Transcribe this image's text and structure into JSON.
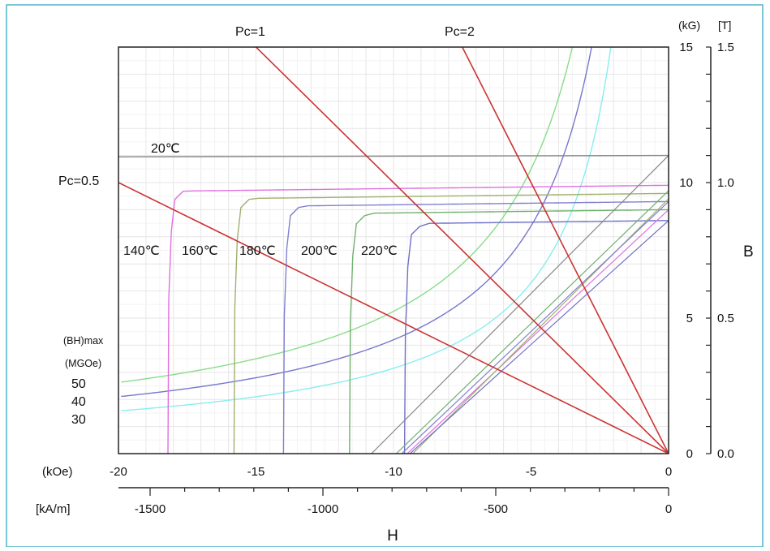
{
  "chart_data": {
    "type": "line",
    "title": "",
    "xlabel": "H",
    "ylabel": "B",
    "x_unit_primary": "(kOe)",
    "x_unit_secondary": "[kA/m]",
    "y_unit_primary": "(kG)",
    "y_unit_secondary": "[T]",
    "xlim": [
      -20,
      0
    ],
    "ylim": [
      0,
      15
    ],
    "grid": true,
    "x_ticks_kOe": [
      "-20",
      "-15",
      "-10",
      "-5",
      "0"
    ],
    "x_ticks_kAm": [
      {
        "label": "-1500",
        "value": -1500
      },
      {
        "label": "-1000",
        "value": -1000
      },
      {
        "label": "-500",
        "value": -500
      },
      {
        "label": "0",
        "value": 0
      }
    ],
    "y_ticks_kG": [
      "0",
      "5",
      "10",
      "15"
    ],
    "y_ticks_T": [
      "0.0",
      "0.5",
      "1.0",
      "1.5"
    ],
    "demag_curves": [
      {
        "name": "20℃",
        "br": 11.0,
        "hcj": -30,
        "color": "#888888"
      },
      {
        "name": "140℃",
        "br": 9.9,
        "hcj": -18.2,
        "color": "#e070e0"
      },
      {
        "name": "160℃",
        "br": 9.6,
        "hcj": -15.8,
        "color": "#a0b070"
      },
      {
        "name": "180℃",
        "br": 9.3,
        "hcj": -14.0,
        "color": "#8080d0"
      },
      {
        "name": "200℃",
        "br": 9.0,
        "hcj": -11.6,
        "color": "#70b070"
      },
      {
        "name": "220℃",
        "br": 8.6,
        "hcj": -9.6,
        "color": "#7070c8"
      }
    ],
    "recoil_lines": [
      {
        "h0": -9.5,
        "b0": 9.0,
        "color": "#e070e0"
      },
      {
        "h0": -9.3,
        "b0": 9.4,
        "color": "#a0b070"
      },
      {
        "h0": -9.7,
        "b0": 9.3,
        "color": "#8080d0"
      },
      {
        "h0": -9.9,
        "b0": 9.7,
        "color": "#70b070"
      },
      {
        "h0": -9.4,
        "b0": 8.6,
        "color": "#7070c8"
      },
      {
        "h0": -10.8,
        "b0": 11.0,
        "color": "#888888"
      }
    ],
    "bhmax_label_line1": "(BH)max",
    "bhmax_label_line2": "(MGOe)",
    "bhmax_curves": [
      {
        "name": "50",
        "value": 50,
        "color": "#88dd88"
      },
      {
        "name": "40",
        "value": 40,
        "color": "#7777cc"
      },
      {
        "name": "30",
        "value": 30,
        "color": "#88eeee"
      }
    ],
    "load_lines": [
      {
        "name": "Pc=0.5",
        "pc": 0.5
      },
      {
        "name": "Pc=1",
        "pc": 1
      },
      {
        "name": "Pc=2",
        "pc": 2
      }
    ],
    "load_line_color": "#cc3333"
  }
}
